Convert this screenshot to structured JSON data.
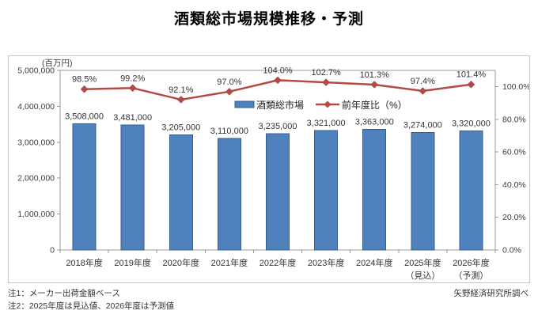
{
  "page": {
    "title": "酒類総市場規模推移・予測"
  },
  "notes": {
    "note1": "注1：メーカー出荷金額ベース",
    "note2": "注2：2025年度は見込値、2026年度は予測値",
    "source": "矢野経済研究所調べ"
  },
  "chart_data": {
    "type": "bar",
    "subtype": "combo bar+line, secondary percent axis",
    "unit_label": "(百万円)",
    "grid": false,
    "legend_position": "inside top-center",
    "categories": [
      {
        "label": "2018年度",
        "sublabel": ""
      },
      {
        "label": "2019年度",
        "sublabel": ""
      },
      {
        "label": "2020年度",
        "sublabel": ""
      },
      {
        "label": "2021年度",
        "sublabel": ""
      },
      {
        "label": "2022年度",
        "sublabel": ""
      },
      {
        "label": "2023年度",
        "sublabel": ""
      },
      {
        "label": "2024年度",
        "sublabel": ""
      },
      {
        "label": "2025年度",
        "sublabel": "（見込）"
      },
      {
        "label": "2026年度",
        "sublabel": "（予測）"
      }
    ],
    "series": [
      {
        "name": "酒類総市場",
        "type": "bar",
        "axis": "left",
        "color": "#4f81bd",
        "border_color": "#36608e",
        "values": [
          3508000,
          3481000,
          3205000,
          3110000,
          3235000,
          3321000,
          3363000,
          3274000,
          3320000
        ],
        "labels": [
          "3,508,000",
          "3,481,000",
          "3,205,000",
          "3,110,000",
          "3,235,000",
          "3,321,000",
          "3,363,000",
          "3,274,000",
          "3,320,000"
        ]
      },
      {
        "name": "前年度比（%）",
        "type": "line",
        "axis": "right",
        "color": "#b54a42",
        "values": [
          98.5,
          99.2,
          92.1,
          97.0,
          104.0,
          102.7,
          101.3,
          97.4,
          101.4
        ],
        "labels": [
          "98.5%",
          "99.2%",
          "92.1%",
          "97.0%",
          "104.0%",
          "102.7%",
          "101.3%",
          "97.4%",
          "101.4%"
        ]
      }
    ],
    "left_axis": {
      "min": 0,
      "max": 5000000,
      "tick_values": [
        5000000,
        4000000,
        3000000,
        2000000,
        1000000,
        0
      ],
      "tick_labels": [
        "5,000,000",
        "4,000,000",
        "3,000,000",
        "2,000,000",
        "1,000,000",
        "0"
      ]
    },
    "right_axis": {
      "min": 0,
      "max": 110,
      "tick_values": [
        100,
        80,
        60,
        40,
        20,
        0
      ],
      "tick_labels": [
        "100.0%",
        "80.0%",
        "60.0%",
        "40.0%",
        "20.0%",
        "0.0%"
      ]
    }
  }
}
